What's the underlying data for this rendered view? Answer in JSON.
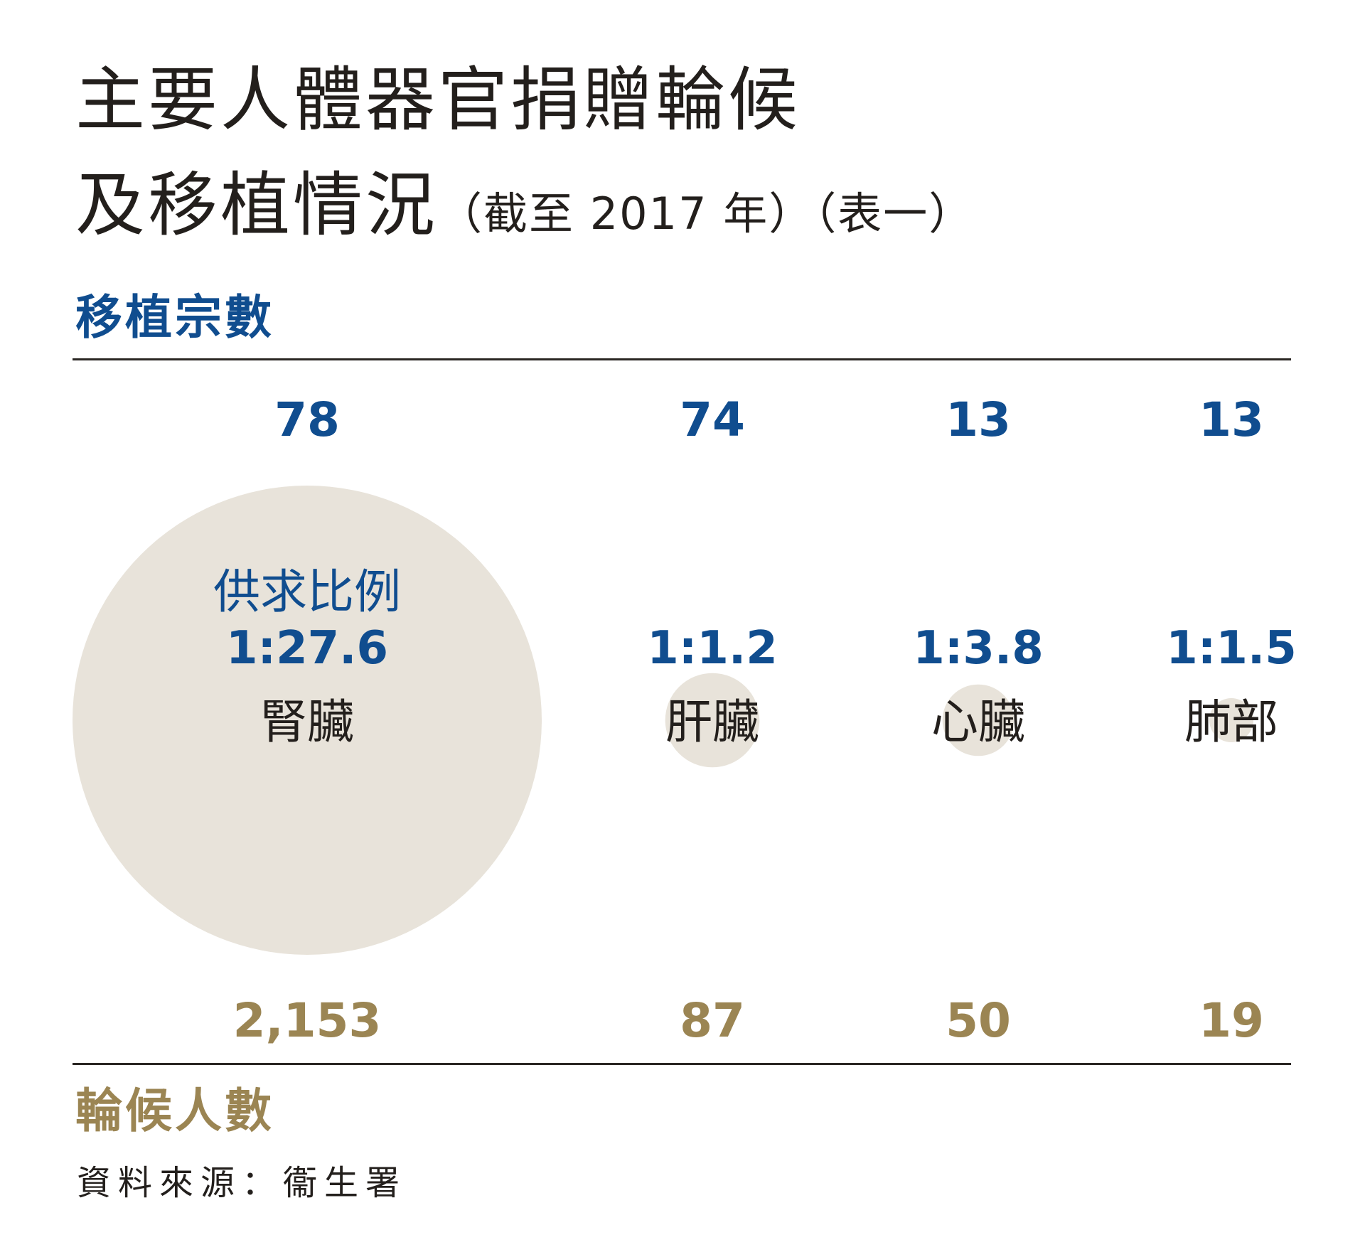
{
  "title_line1": "主要人體器官捐贈輪候",
  "title_line2": "及移植情況",
  "title_note": "（截至 2017 年）（表一）",
  "top_label": "移植宗數",
  "bottom_label": "輪候人數",
  "source": "資料來源：衞生署",
  "ratio_heading": "供求比例",
  "colors": {
    "blue": "#104d8f",
    "gold": "#9b8553",
    "bubble": "#e8e3da",
    "text": "#231f1c"
  },
  "chart_data": {
    "type": "bubble",
    "categories": [
      "腎臟",
      "肝臟",
      "心臟",
      "肺部"
    ],
    "series": [
      {
        "name": "移植宗數",
        "values": [
          78,
          74,
          13,
          13
        ]
      },
      {
        "name": "輪候人數",
        "values": [
          2153,
          87,
          50,
          19
        ]
      }
    ],
    "top_labels": [
      "78",
      "74",
      "13",
      "13"
    ],
    "bottom_labels": [
      "2,153",
      "87",
      "50",
      "19"
    ],
    "ratios": [
      "1:27.6",
      "1:1.2",
      "1:3.8",
      "1:1.5"
    ]
  }
}
